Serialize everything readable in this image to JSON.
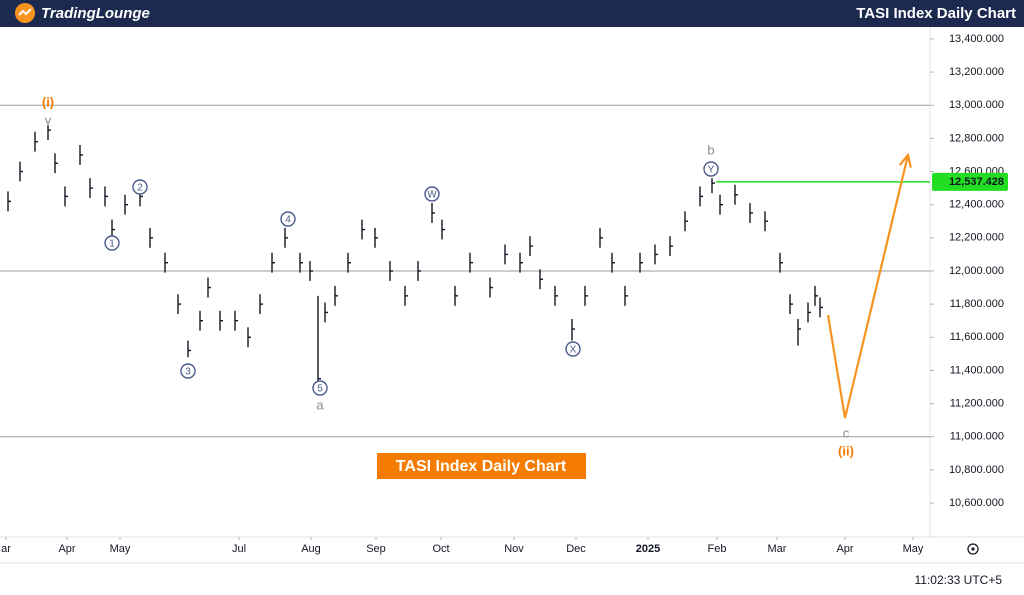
{
  "header": {
    "logo": "TradingLounge",
    "title": "TASI Index Daily Chart"
  },
  "clock": "11:02:33 UTC+5",
  "chart_data": {
    "type": "ohlc",
    "title": "TASI Index Daily Chart",
    "color": "#131722",
    "x": [
      4,
      10,
      17.5,
      24,
      27.5,
      32.5,
      40,
      45,
      52.5,
      56,
      62.5,
      70,
      75,
      82.5,
      89,
      94,
      100,
      104,
      110,
      117.5,
      124,
      130,
      136,
      142.5,
      150,
      155,
      159,
      162.5,
      167.5,
      174,
      181,
      187.5,
      195,
      202.5,
      209,
      216,
      221,
      227.5,
      235,
      245,
      252.5,
      260,
      265,
      270,
      277.5,
      286,
      292.5,
      300,
      306,
      312.5,
      320,
      327.5,
      335,
      342.5,
      350,
      356,
      360,
      367.5,
      375,
      382.5,
      390,
      395,
      399,
      404,
      407.5,
      410
    ],
    "high": [
      12480,
      12660,
      12840,
      12880,
      12710,
      12510,
      12760,
      12560,
      12510,
      12310,
      12460,
      12510,
      12260,
      12110,
      11860,
      11580,
      11760,
      11960,
      11760,
      11760,
      11660,
      11860,
      12110,
      12260,
      12110,
      12060,
      11850,
      11810,
      11910,
      12110,
      12310,
      12260,
      12060,
      11910,
      12060,
      12410,
      12310,
      11910,
      12110,
      11960,
      12160,
      12110,
      12210,
      12010,
      11910,
      11710,
      11910,
      12260,
      12110,
      11910,
      12110,
      12160,
      12210,
      12360,
      12510,
      12560,
      12460,
      12520,
      12410,
      12360,
      12110,
      11860,
      11710,
      11810,
      11910,
      11840
    ],
    "low": [
      12360,
      12540,
      12720,
      12790,
      12590,
      12390,
      12640,
      12440,
      12390,
      12190,
      12340,
      12390,
      12140,
      11990,
      11740,
      11480,
      11640,
      11840,
      11640,
      11640,
      11540,
      11740,
      11990,
      12140,
      11990,
      11940,
      11300,
      11690,
      11790,
      11990,
      12190,
      12140,
      11940,
      11790,
      11940,
      12290,
      12190,
      11790,
      11990,
      11840,
      12040,
      11990,
      12090,
      11890,
      11790,
      11580,
      11790,
      12140,
      11990,
      11790,
      11990,
      12040,
      12090,
      12240,
      12390,
      12470,
      12340,
      12400,
      12290,
      12240,
      11990,
      11740,
      11550,
      11690,
      11790,
      11720
    ],
    "close": [
      12420,
      12600,
      12780,
      12850,
      12650,
      12450,
      12700,
      12500,
      12450,
      12250,
      12400,
      12450,
      12200,
      12050,
      11800,
      11520,
      11700,
      11900,
      11700,
      11700,
      11600,
      11800,
      12050,
      12200,
      12050,
      12000,
      11350,
      11750,
      11850,
      12050,
      12250,
      12200,
      12000,
      11850,
      12000,
      12350,
      12250,
      11850,
      12050,
      11900,
      12100,
      12050,
      12150,
      11950,
      11850,
      11650,
      11850,
      12200,
      12050,
      11850,
      12050,
      12100,
      12150,
      12300,
      12450,
      12530,
      12400,
      12460,
      12350,
      12300,
      12050,
      11800,
      11650,
      11750,
      11850,
      11780
    ],
    "xlim": [
      0,
      465
    ],
    "ylim": [
      10395,
      13472
    ],
    "xticks": [
      {
        "value": 3,
        "label": "ar"
      },
      {
        "value": 33.5,
        "label": "Apr"
      },
      {
        "value": 60,
        "label": "May"
      },
      {
        "value": 119.5,
        "label": "Jul"
      },
      {
        "value": 155.5,
        "label": "Aug"
      },
      {
        "value": 188,
        "label": "Sep"
      },
      {
        "value": 220.5,
        "label": "Oct"
      },
      {
        "value": 257,
        "label": "Nov"
      },
      {
        "value": 288,
        "label": "Dec"
      },
      {
        "value": 324,
        "label": "2025"
      },
      {
        "value": 358.5,
        "label": "Feb"
      },
      {
        "value": 388.5,
        "label": "Mar"
      },
      {
        "value": 422.5,
        "label": "Apr"
      },
      {
        "value": 456.5,
        "label": "May"
      }
    ],
    "yticks": [
      {
        "value": 13400,
        "label": "13,400.000"
      },
      {
        "value": 13200,
        "label": "13,200.000"
      },
      {
        "value": 13000,
        "label": "13,000.000"
      },
      {
        "value": 12800,
        "label": "12,800.000"
      },
      {
        "value": 12600,
        "label": "12,600.000"
      },
      {
        "value": 12400,
        "label": "12,400.000"
      },
      {
        "value": 12200,
        "label": "12,200.000"
      },
      {
        "value": 12000,
        "label": "12,000.000"
      },
      {
        "value": 11800,
        "label": "11,800.000"
      },
      {
        "value": 11600,
        "label": "11,600.000"
      },
      {
        "value": 11400,
        "label": "11,400.000"
      },
      {
        "value": 11200,
        "label": "11,200.000"
      },
      {
        "value": 11000,
        "label": "11,000.000"
      },
      {
        "value": 10800,
        "label": "10,800.000"
      },
      {
        "value": 10600,
        "label": "10,600.000"
      }
    ],
    "levels": [
      13000,
      12000,
      11000
    ],
    "level_color": "#9e9e9e",
    "current_level": {
      "value": 12537.428,
      "label": "12,537.428",
      "color": "#22dd22"
    },
    "projection": {
      "x": [
        414,
        422.5,
        454
      ],
      "values": [
        11734,
        11113,
        12700
      ],
      "color": "#f7931e"
    },
    "wave_labels": [
      {
        "text": "(i)",
        "color": "#f57c00"
      },
      {
        "text": "v",
        "color": "#8a8a8a"
      },
      {
        "text": "1",
        "color": "#4a5a8c",
        "circled": true
      },
      {
        "text": "2",
        "color": "#4a5a8c",
        "circled": true
      },
      {
        "text": "3",
        "color": "#4a5a8c",
        "circled": true
      },
      {
        "text": "4",
        "color": "#4a5a8c",
        "circled": true
      },
      {
        "text": "5",
        "color": "#4a5a8c",
        "circled": true
      },
      {
        "text": "a",
        "color": "#8a8a8a"
      },
      {
        "text": "W",
        "color": "#4a5a8c",
        "circled": true
      },
      {
        "text": "X",
        "color": "#4a5a8c",
        "circled": true
      },
      {
        "text": "Y",
        "color": "#4a5a8c",
        "circled": true
      },
      {
        "text": "b",
        "color": "#8a8a8a"
      },
      {
        "text": "c",
        "color": "#8a8a8a"
      },
      {
        "text": "(ii)",
        "color": "#f57c00"
      }
    ]
  }
}
